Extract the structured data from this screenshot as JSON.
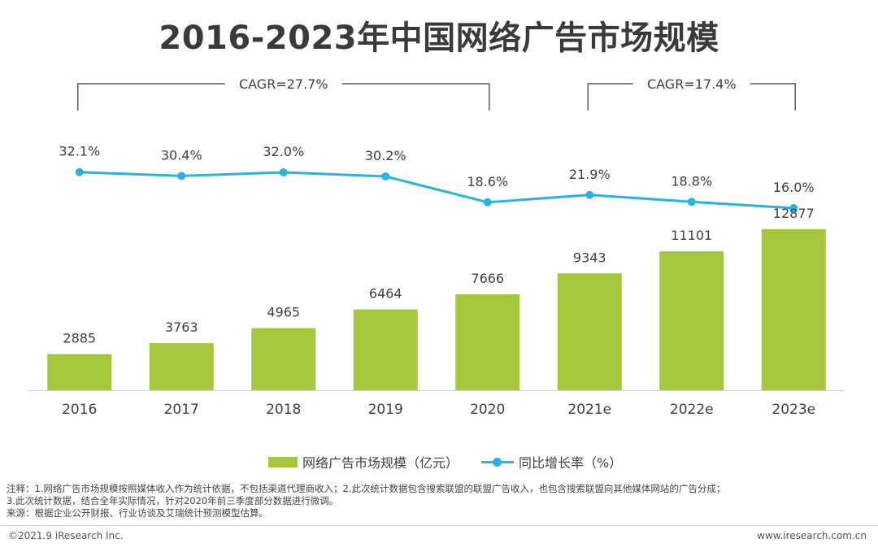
{
  "title": "2016-2023年中国网络广告市场规模",
  "chart_data": {
    "type": "bar",
    "categories": [
      "2016",
      "2017",
      "2018",
      "2019",
      "2020",
      "2021e",
      "2022e",
      "2023e"
    ],
    "series": [
      {
        "name": "网络广告市场规模（亿元）",
        "type": "bar",
        "color": "#a4c73c",
        "values": [
          2885,
          3763,
          4965,
          6464,
          7666,
          9343,
          11101,
          12877
        ]
      },
      {
        "name": "同比增长率（%）",
        "type": "line",
        "color": "#27b4e2",
        "values": [
          32.1,
          30.4,
          32.0,
          30.2,
          18.6,
          21.9,
          18.8,
          16.0
        ],
        "labels": [
          "32.1%",
          "30.4%",
          "32.0%",
          "30.2%",
          "18.6%",
          "21.9%",
          "18.8%",
          "16.0%"
        ]
      }
    ],
    "annotations": [
      {
        "text": "CAGR=27.7%",
        "from": "2016",
        "to": "2020"
      },
      {
        "text": "CAGR=17.4%",
        "from": "2021e",
        "to": "2023e"
      }
    ]
  },
  "legend": {
    "bar_label": "网络广告市场规模（亿元）",
    "line_label": "同比增长率（%）"
  },
  "notes": {
    "line1": "注释：1.网络广告市场规模按照媒体收入作为统计依据，不包括渠道代理商收入；2.此次统计数据包含搜索联盟的联盟广告收入，也包含搜索联盟向其他媒体网站的广告分成；",
    "line2": "3.此次统计数据，结合全年实际情况，针对2020年前三季度部分数据进行微调。",
    "line3": "来源：根据企业公开财报、行业访谈及艾瑞统计预测模型估算。"
  },
  "footer": {
    "copyright": "©2021.9 iResearch Inc.",
    "website": "www.iresearch.com.cn"
  }
}
